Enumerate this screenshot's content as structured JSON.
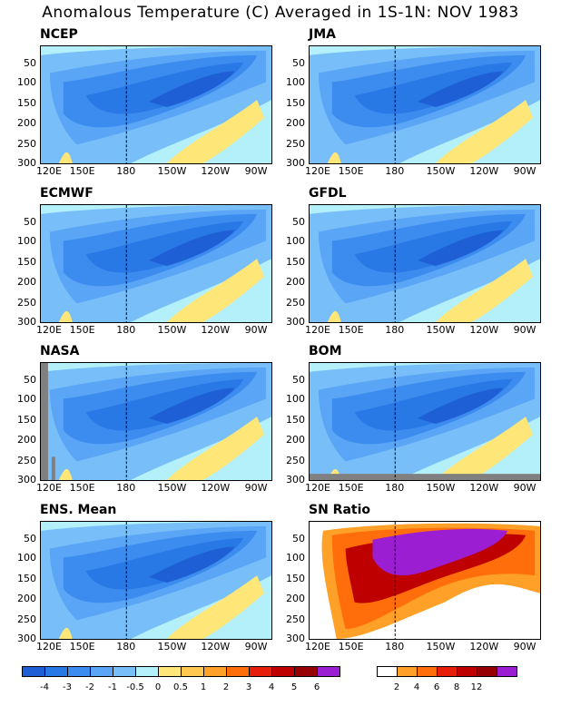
{
  "title": "Anomalous Temperature (C) Averaged in 1S-1N: NOV 1983",
  "panels": [
    {
      "name": "NCEP"
    },
    {
      "name": "JMA"
    },
    {
      "name": "ECMWF"
    },
    {
      "name": "GFDL"
    },
    {
      "name": "NASA"
    },
    {
      "name": "BOM"
    },
    {
      "name": "ENS. Mean"
    },
    {
      "name": "SN Ratio"
    }
  ],
  "chart_data": {
    "type": "heatmap",
    "x_ticks": [
      "120E",
      "150E",
      "180",
      "150W",
      "120W",
      "90W"
    ],
    "y_ticks": [
      "50",
      "100",
      "150",
      "200",
      "250",
      "300"
    ],
    "colors": {
      "anom": [
        "#1e5fd6",
        "#2878e6",
        "#3c8cf0",
        "#5aa5f5",
        "#78bef8",
        "#b4f0fa",
        "#ffe678",
        "#ffc850",
        "#ffa028",
        "#ff6e0a",
        "#e61e0a",
        "#be0000",
        "#960000",
        "#9b1ed2"
      ],
      "sn": [
        "#ffffff",
        "#ffa028",
        "#ff6e0a",
        "#e61e0a",
        "#be0000",
        "#960000",
        "#9b1ed2"
      ]
    },
    "anom_scale_labels": [
      "-4",
      "-3",
      "-2",
      "-1",
      "-0.5",
      "0",
      "0.5",
      "1",
      "2",
      "3",
      "4",
      "5",
      "6"
    ],
    "sn_scale_labels": [
      "2",
      "4",
      "6",
      "8",
      "12"
    ]
  }
}
